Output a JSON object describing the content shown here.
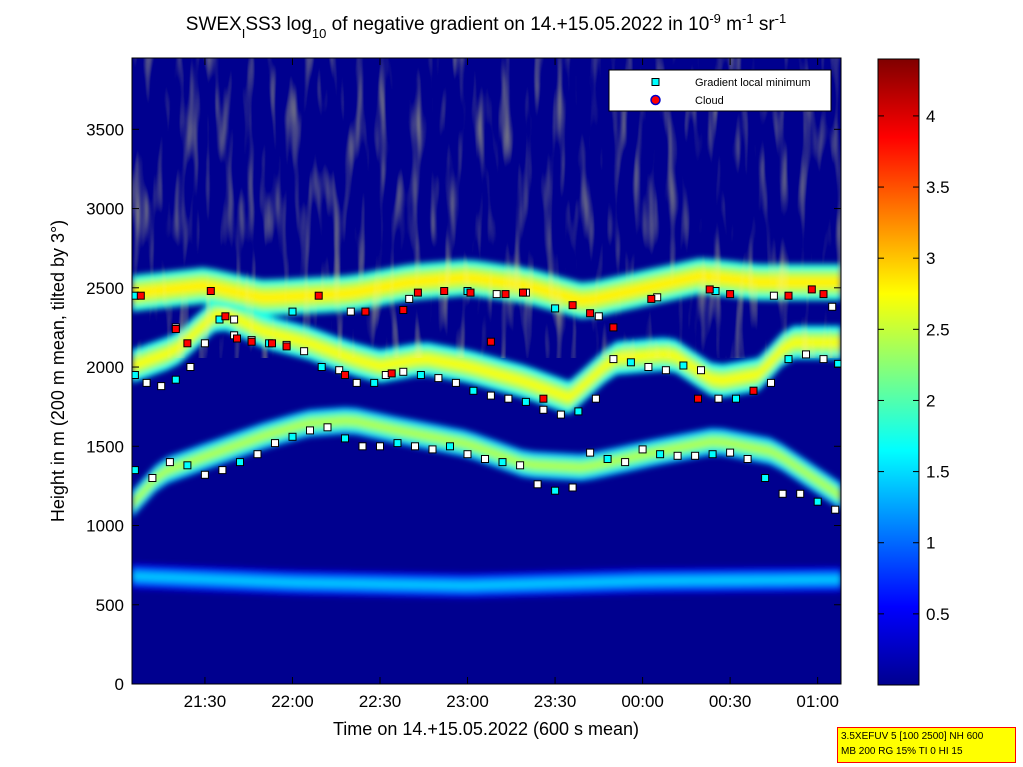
{
  "chart_data": {
    "type": "heatmap",
    "title_parts": {
      "a": "SWEX",
      "sub1": "I",
      "b": "SS3 log",
      "sub2": "10",
      "c": " of negative gradient on 14.+15.05.2022 in 10",
      "sup1": "-9",
      "d": " m",
      "sup2": "-1",
      "e": " sr",
      "sup3": "-1"
    },
    "xlabel": "Time on 14.+15.05.2022 (600 s mean)",
    "ylabel": "Height in m (200 m mean, tilted by 3°)",
    "x_ticks": [
      "21:30",
      "22:00",
      "22:30",
      "23:00",
      "23:30",
      "00:00",
      "00:30",
      "01:00"
    ],
    "x_tick_minutes": [
      90,
      120,
      150,
      180,
      210,
      240,
      270,
      300
    ],
    "x_range_minutes": [
      65,
      308
    ],
    "y_ticks": [
      0,
      500,
      1000,
      1500,
      2000,
      2500,
      3000,
      3500
    ],
    "y_range": [
      0,
      3950
    ],
    "colorbar": {
      "range": [
        0,
        4.4
      ],
      "ticks": [
        0.5,
        1,
        1.5,
        2,
        2.5,
        3,
        3.5,
        4
      ],
      "tick_labels": [
        "0.5",
        "1",
        "1.5",
        "2",
        "2.5",
        "3",
        "3.5",
        "4"
      ],
      "colormap": "jet"
    },
    "legend": {
      "position": "top-right",
      "entries": [
        {
          "label": "Gradient local minimum",
          "marker": "square",
          "color": "#00ffff"
        },
        {
          "label": "Cloud",
          "marker": "circle",
          "color": "#ff0000"
        }
      ]
    },
    "layers": [
      {
        "name": "cloud-base-layer",
        "base": [
          [
            65,
            600
          ],
          [
            120,
            560
          ],
          [
            180,
            540
          ],
          [
            240,
            570
          ],
          [
            308,
            580
          ]
        ],
        "thickness": 160,
        "level": 1.3
      },
      {
        "name": "lower-layer",
        "base": [
          [
            65,
            1050
          ],
          [
            75,
            1250
          ],
          [
            90,
            1350
          ],
          [
            110,
            1480
          ],
          [
            125,
            1560
          ],
          [
            140,
            1580
          ],
          [
            155,
            1520
          ],
          [
            180,
            1430
          ],
          [
            200,
            1300
          ],
          [
            220,
            1280
          ],
          [
            245,
            1380
          ],
          [
            265,
            1450
          ],
          [
            285,
            1380
          ],
          [
            308,
            1100
          ]
        ],
        "thickness": 170,
        "level": 2.3
      },
      {
        "name": "middle-layer",
        "base": [
          [
            65,
            1900
          ],
          [
            80,
            2000
          ],
          [
            95,
            2250
          ],
          [
            110,
            2120
          ],
          [
            125,
            2050
          ],
          [
            140,
            1950
          ],
          [
            150,
            1900
          ],
          [
            165,
            1950
          ],
          [
            180,
            1900
          ],
          [
            200,
            1800
          ],
          [
            215,
            1700
          ],
          [
            230,
            1950
          ],
          [
            250,
            1980
          ],
          [
            265,
            1800
          ],
          [
            280,
            1850
          ],
          [
            290,
            2050
          ],
          [
            308,
            2050
          ]
        ],
        "thickness": 210,
        "level": 2.6
      },
      {
        "name": "upper-layer",
        "base": [
          [
            65,
            2350
          ],
          [
            90,
            2400
          ],
          [
            110,
            2320
          ],
          [
            140,
            2350
          ],
          [
            160,
            2420
          ],
          [
            180,
            2450
          ],
          [
            200,
            2400
          ],
          [
            220,
            2300
          ],
          [
            240,
            2380
          ],
          [
            260,
            2460
          ],
          [
            280,
            2420
          ],
          [
            308,
            2420
          ]
        ],
        "thickness": 230,
        "level": 2.7
      }
    ],
    "gradient_minima": [
      {
        "x": [
          66,
          70,
          75,
          80,
          85,
          90,
          95,
          100,
          106,
          112,
          118,
          124,
          130,
          136,
          142,
          148,
          152,
          158,
          164,
          170,
          176,
          182,
          188,
          194,
          200,
          206,
          212,
          218,
          224,
          230,
          236,
          242,
          248,
          254,
          260,
          266,
          272,
          278,
          284,
          290,
          296,
          302,
          307
        ],
        "y": [
          1950,
          1900,
          1880,
          1920,
          2000,
          2150,
          2300,
          2300,
          2170,
          2150,
          2140,
          2100,
          2000,
          1980,
          1900,
          1900,
          1950,
          1970,
          1950,
          1930,
          1900,
          1850,
          1820,
          1800,
          1780,
          1730,
          1700,
          1720,
          1800,
          2050,
          2030,
          2000,
          1980,
          2010,
          1980,
          1800,
          1800,
          1850,
          1900,
          2050,
          2080,
          2050,
          2020
        ]
      },
      {
        "x": [
          66,
          72,
          78,
          84,
          90,
          96,
          102,
          108,
          114,
          120,
          126,
          132,
          138,
          144,
          150,
          156,
          162,
          168,
          174,
          180,
          186,
          192,
          198,
          204,
          210,
          216,
          222,
          228,
          234,
          240,
          246,
          252,
          258,
          264,
          270,
          276,
          282,
          288,
          294,
          300,
          306
        ],
        "y": [
          1350,
          1300,
          1400,
          1380,
          1320,
          1350,
          1400,
          1450,
          1520,
          1560,
          1600,
          1620,
          1550,
          1500,
          1500,
          1520,
          1500,
          1480,
          1500,
          1450,
          1420,
          1400,
          1380,
          1260,
          1220,
          1240,
          1460,
          1420,
          1400,
          1480,
          1450,
          1440,
          1440,
          1450,
          1460,
          1420,
          1300,
          1200,
          1200,
          1150,
          1100
        ]
      },
      {
        "x": [
          66,
          80,
          100,
          120,
          140,
          160,
          180,
          190,
          200,
          210,
          225,
          245,
          265,
          285,
          305
        ],
        "y": [
          2450,
          2250,
          2200,
          2350,
          2350,
          2430,
          2480,
          2460,
          2470,
          2370,
          2320,
          2440,
          2480,
          2450,
          2380
        ]
      }
    ],
    "clouds": {
      "x": [
        68,
        80,
        84,
        92,
        97,
        101,
        106,
        113,
        118,
        129,
        138,
        145,
        154,
        158,
        163,
        172,
        181,
        188,
        193,
        199,
        206,
        216,
        222,
        230,
        243,
        259,
        263,
        270,
        278,
        290,
        298,
        302
      ],
      "y": [
        2450,
        2240,
        2150,
        2480,
        2320,
        2180,
        2160,
        2150,
        2130,
        2450,
        1950,
        2350,
        1960,
        2360,
        2470,
        2480,
        2470,
        2160,
        2460,
        2470,
        1800,
        2390,
        2340,
        2250,
        2430,
        1800,
        2490,
        2460,
        1850,
        2450,
        2490,
        2460
      ]
    },
    "annotation_box": {
      "line1": "3.5XEFUV 5 [100 2500] NH 600",
      "line2": "MB 200 RG 15% TI 0 HI 15"
    }
  }
}
